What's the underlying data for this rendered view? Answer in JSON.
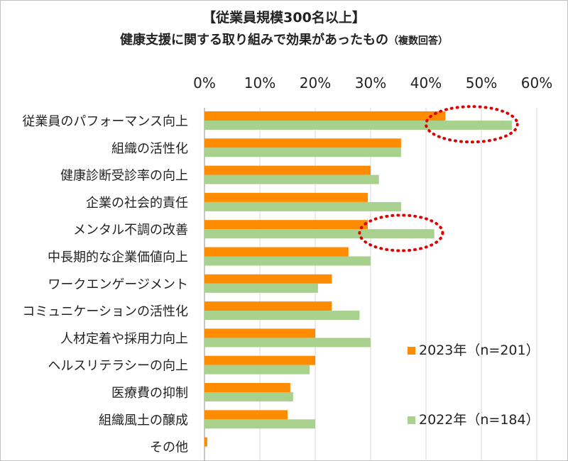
{
  "chart_data": {
    "type": "bar",
    "orientation": "horizontal",
    "title": "【従業員規模300名以上】",
    "subtitle": "健康支援に関する取り組みで効果があったもの",
    "subtitle_note": "（複数回答）",
    "x_ticks": [
      "0%",
      "10%",
      "20%",
      "30%",
      "40%",
      "50%",
      "60%"
    ],
    "xlim": [
      0,
      60
    ],
    "grid": true,
    "categories": [
      "従業員のパフォーマンス向上",
      "組織の活性化",
      "健康診断受診率の向上",
      "企業の社会的責任",
      "メンタル不調の改善",
      "中長期的な企業価値向上",
      "ワークエンゲージメント",
      "コミュニケーションの活性化",
      "人材定着や採用力向上",
      "ヘルスリテラシーの向上",
      "医療費の抑制",
      "組織風土の醸成",
      "その他"
    ],
    "series": [
      {
        "name": "2023年（n=201）",
        "color": "#ff8c00",
        "values": [
          43.5,
          35.5,
          30,
          29.5,
          29.5,
          26,
          23,
          23,
          20,
          20,
          15.5,
          15,
          0.5
        ]
      },
      {
        "name": "2022年（n=184）",
        "color": "#a9d18e",
        "values": [
          55.5,
          35.5,
          31.5,
          35.5,
          41.5,
          30,
          20.5,
          28,
          30,
          19,
          16,
          20,
          0
        ]
      }
    ],
    "highlight_color": "#e00000",
    "legend": "bottom-right"
  }
}
